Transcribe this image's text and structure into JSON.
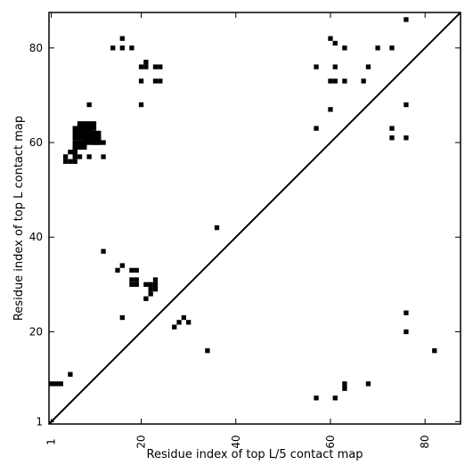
{
  "chart_data": {
    "type": "heatmap",
    "title": "",
    "xlabel": "Residue index of top L/5 contact map",
    "ylabel": "Residue index of top L contact map",
    "xlim": [
      0.5,
      87.5
    ],
    "ylim": [
      0.5,
      87.5
    ],
    "x_ticks": [
      1,
      20,
      40,
      60,
      80
    ],
    "y_ticks": [
      1,
      20,
      40,
      60,
      80
    ],
    "x_tick_labels": [
      "1",
      "20",
      "40",
      "60",
      "80"
    ],
    "y_tick_labels": [
      "1",
      "20",
      "40",
      "60",
      "80"
    ],
    "diagonal": true,
    "cell_color": "#000000",
    "grid": false,
    "upper_left_contacts": [
      [
        16,
        82
      ],
      [
        14,
        80
      ],
      [
        16,
        80
      ],
      [
        18,
        80
      ],
      [
        21,
        77
      ],
      [
        20,
        76
      ],
      [
        21,
        76
      ],
      [
        23,
        76
      ],
      [
        24,
        76
      ],
      [
        20,
        73
      ],
      [
        23,
        73
      ],
      [
        24,
        73
      ],
      [
        9,
        68
      ],
      [
        20,
        68
      ],
      [
        12,
        60
      ],
      [
        4,
        57
      ],
      [
        7,
        57
      ],
      [
        9,
        57
      ],
      [
        12,
        57
      ],
      [
        5,
        58
      ],
      [
        6,
        58
      ],
      [
        4,
        56
      ],
      [
        5,
        56
      ],
      [
        6,
        56
      ],
      [
        12,
        37
      ],
      [
        15,
        33
      ],
      [
        16,
        34
      ],
      [
        18,
        33
      ],
      [
        19,
        33
      ],
      [
        18,
        31
      ],
      [
        19,
        31
      ],
      [
        18,
        30
      ],
      [
        19,
        30
      ],
      [
        21,
        30
      ],
      [
        22,
        30
      ],
      [
        23,
        30
      ],
      [
        23,
        31
      ],
      [
        22,
        29
      ],
      [
        23,
        29
      ],
      [
        22,
        28
      ],
      [
        21,
        27
      ],
      [
        16,
        23
      ],
      [
        57,
        76
      ],
      [
        61,
        76
      ],
      [
        68,
        76
      ],
      [
        60,
        82
      ],
      [
        61,
        81
      ],
      [
        63,
        80
      ],
      [
        70,
        80
      ],
      [
        73,
        80
      ],
      [
        60,
        73
      ],
      [
        61,
        73
      ],
      [
        63,
        73
      ],
      [
        67,
        73
      ],
      [
        60,
        67
      ],
      [
        57,
        63
      ],
      [
        73,
        63
      ],
      [
        73,
        61
      ],
      [
        76,
        61
      ],
      [
        76,
        68
      ],
      [
        76,
        86
      ]
    ],
    "upper_left_blocks": [
      [
        6,
        9,
        61,
        63
      ],
      [
        7,
        10,
        63,
        64
      ],
      [
        8,
        11,
        60,
        62
      ],
      [
        6,
        8,
        59,
        60
      ],
      [
        6,
        6,
        57,
        59
      ],
      [
        10,
        11,
        60,
        61
      ]
    ],
    "lower_right_contacts": [
      [
        27,
        21
      ],
      [
        28,
        22
      ],
      [
        29,
        23
      ],
      [
        30,
        22
      ],
      [
        34,
        16
      ],
      [
        36,
        42
      ],
      [
        76,
        24
      ],
      [
        76,
        20
      ],
      [
        82,
        16
      ],
      [
        57,
        6
      ],
      [
        61,
        6
      ],
      [
        63,
        8
      ],
      [
        63,
        9
      ],
      [
        68,
        9
      ],
      [
        5,
        11
      ]
    ],
    "lower_right_blocks": [
      [
        1,
        3,
        9,
        9
      ]
    ]
  }
}
